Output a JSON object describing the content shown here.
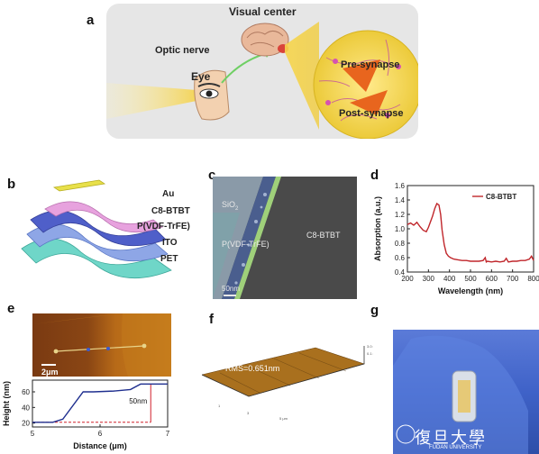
{
  "panels": {
    "a": "a",
    "b": "b",
    "c": "c",
    "d": "d",
    "e": "e",
    "f": "f",
    "g": "g"
  },
  "panel_a": {
    "visual_center": "Visual center",
    "optic_nerve": "Optic nerve",
    "eye": "Eye",
    "pre_synapse": "Pre-synapse",
    "post_synapse": "Post-synapse"
  },
  "panel_b": {
    "layers": [
      "Au",
      "C8-BTBT",
      "P(VDF-TrFE)",
      "ITO",
      "PET"
    ]
  },
  "panel_c": {
    "sio2": "SiO",
    "sio2_sub": "2",
    "pvdf": "P(VDF-TrFE)",
    "c8": "C8-BTBT",
    "scale": "50nm"
  },
  "panel_e": {
    "scale": "2μm",
    "annotation": "50nm"
  },
  "panel_f": {
    "rms": "RMS=0.651nm"
  },
  "panel_g": {
    "watermark": "復旦大學",
    "watermark_sub": "FUDAN UNIVERSITY"
  },
  "colors": {
    "absorption_line": "#c0262b",
    "height_line": "#1f2f8f",
    "dashed_line": "#d0202a",
    "panel_a_bg": "#e6e6e6"
  },
  "chart_data": [
    {
      "id": "d",
      "type": "line",
      "xlabel": "Wavelength (nm)",
      "ylabel": "Absorption (a.u.)",
      "xlim": [
        200,
        800
      ],
      "ylim": [
        0.4,
        1.6
      ],
      "xticks": [
        "200",
        "300",
        "400",
        "500",
        "600",
        "700",
        "800"
      ],
      "yticks": [
        "0.4",
        "0.6",
        "0.8",
        "1.0",
        "1.2",
        "1.4",
        "1.6"
      ],
      "legend": "top-right",
      "series": [
        {
          "name": "C8-BTBT",
          "x": [
            200,
            215,
            230,
            245,
            260,
            275,
            290,
            300,
            310,
            320,
            330,
            340,
            350,
            358,
            365,
            375,
            385,
            395,
            405,
            420,
            440,
            460,
            480,
            500,
            520,
            540,
            560,
            570,
            575,
            580,
            600,
            620,
            640,
            660,
            670,
            680,
            700,
            720,
            740,
            760,
            780,
            790,
            800
          ],
          "y": [
            1.06,
            1.08,
            1.05,
            1.09,
            1.03,
            0.98,
            0.96,
            1.02,
            1.1,
            1.18,
            1.28,
            1.35,
            1.33,
            1.2,
            0.98,
            0.78,
            0.66,
            0.62,
            0.6,
            0.58,
            0.57,
            0.56,
            0.56,
            0.55,
            0.55,
            0.55,
            0.56,
            0.6,
            0.54,
            0.55,
            0.54,
            0.55,
            0.54,
            0.55,
            0.59,
            0.54,
            0.55,
            0.55,
            0.56,
            0.56,
            0.58,
            0.62,
            0.56
          ]
        }
      ]
    },
    {
      "id": "e",
      "type": "line",
      "xlabel": "Distance (μm)",
      "ylabel": "Height (nm)",
      "xlim": [
        5,
        7
      ],
      "ylim": [
        15,
        75
      ],
      "xticks": [
        "5",
        "6",
        "7"
      ],
      "yticks": [
        "20",
        "40",
        "60"
      ],
      "series": [
        {
          "x": [
            5.0,
            5.3,
            5.45,
            5.75,
            5.9,
            6.2,
            6.45,
            6.6,
            7.0
          ],
          "y": [
            21,
            21,
            25,
            60,
            60,
            61,
            63,
            70,
            70
          ]
        }
      ]
    }
  ]
}
